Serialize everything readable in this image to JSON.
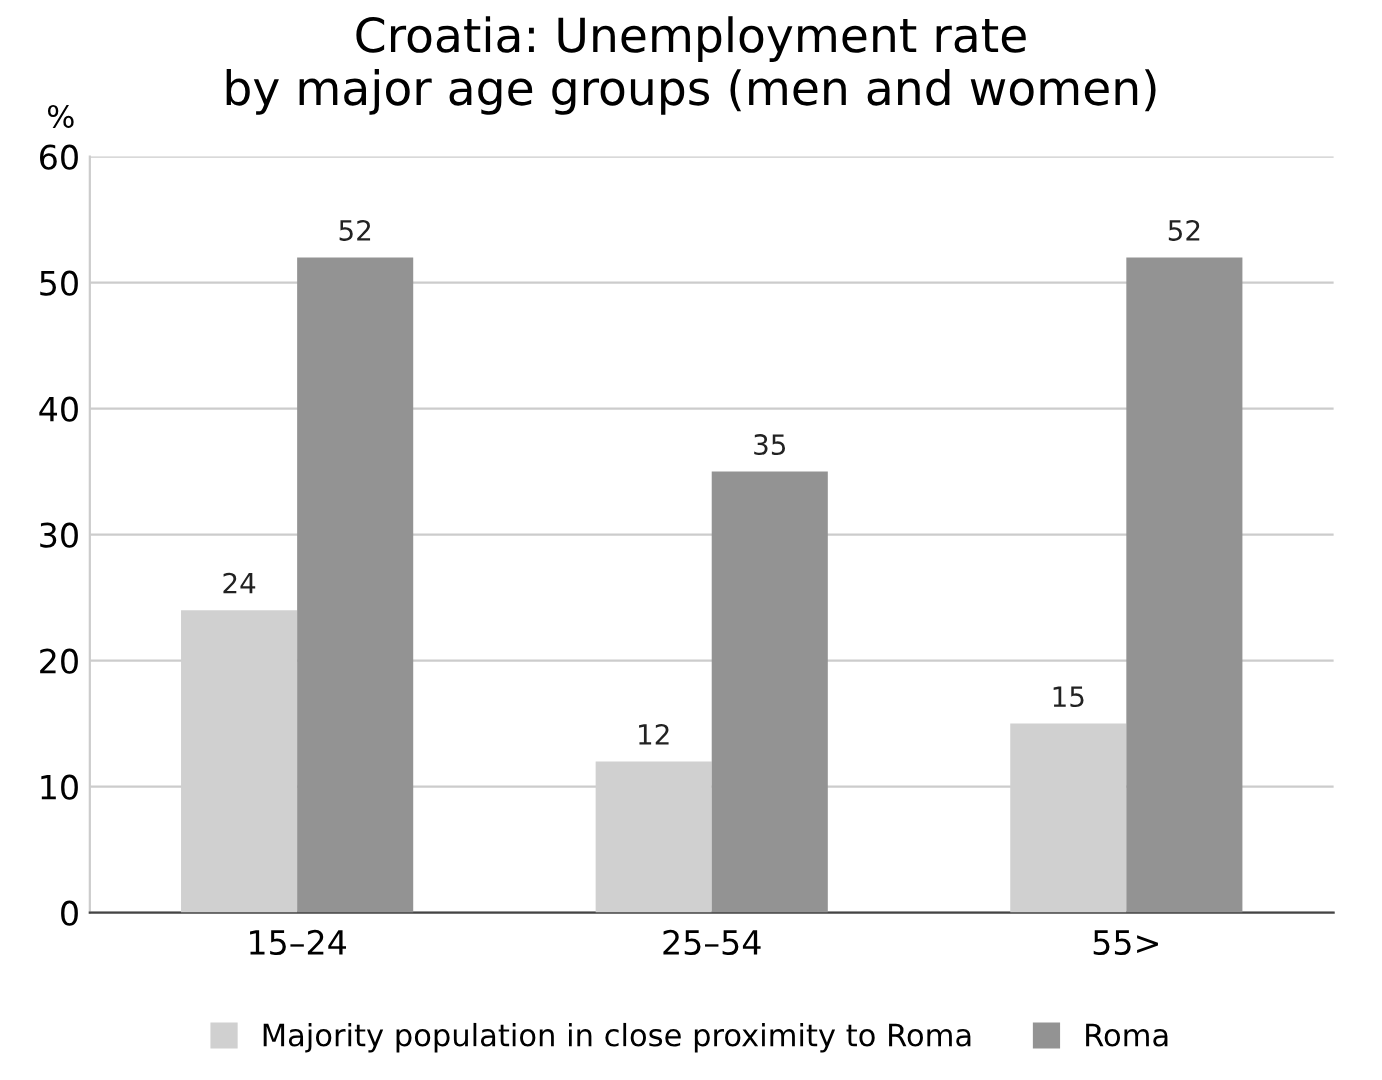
{
  "chart_data": {
    "type": "bar",
    "title": "Croatia: Unemployment rate\nby major age groups (men and women)",
    "ylabel": "%",
    "categories": [
      "15–24",
      "25–54",
      "55>"
    ],
    "series": [
      {
        "name": "Majority population in close proximity to Roma",
        "color": "#d0d0d0",
        "values": [
          24,
          12,
          15
        ]
      },
      {
        "name": "Roma",
        "color": "#939393",
        "values": [
          52,
          35,
          52
        ]
      }
    ],
    "ylim": [
      0,
      60
    ],
    "yticks": [
      0,
      10,
      20,
      30,
      40,
      50,
      60
    ],
    "grid": "y",
    "legend": "bottom",
    "data_labels": true
  }
}
